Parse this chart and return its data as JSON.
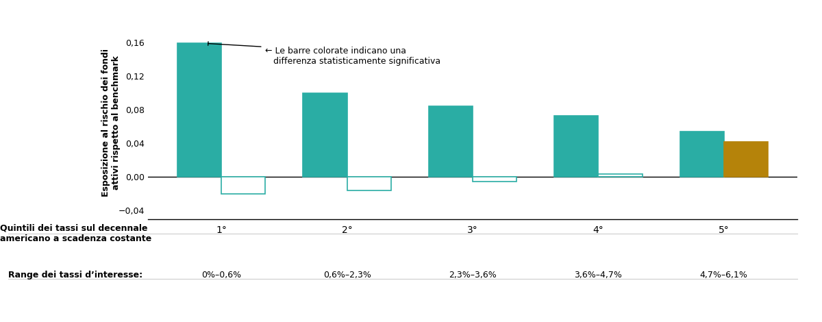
{
  "quintiles": [
    "1°",
    "2°",
    "3°",
    "4°",
    "5°"
  ],
  "credit_risk": [
    0.159,
    0.0996,
    0.0845,
    0.0728,
    0.054
  ],
  "duration_risk": [
    -0.0202,
    -0.0157,
    -0.0052,
    0.0036,
    0.0415
  ],
  "credit_color_significant": "#2AADA4",
  "credit_color_not_significant": "#FFFFFF",
  "duration_color_significant": "#B5830A",
  "duration_color_not_significant": "#FFFFFF",
  "credit_significant": [
    true,
    true,
    true,
    true,
    true
  ],
  "duration_significant": [
    false,
    false,
    false,
    false,
    true
  ],
  "ylim": [
    -0.05,
    0.18
  ],
  "yticks": [
    -0.04,
    0.0,
    0.04,
    0.08,
    0.12,
    0.16
  ],
  "ylabel": "Esposizione al rischio dei fondi\nattivi rispetto al benchmark",
  "xlabel_main": "Quintili dei tassi sul decennale\namericano a scadenza costante",
  "xlabel_range_label": "Range dei tassi d’interesse:",
  "ranges": [
    "0%–0,6%",
    "0,6%–2,3%",
    "2,3%–3,6%",
    "3,6%–4,7%",
    "4,7%–6,1%"
  ],
  "annotation_text": "← Le barre colorate indicano una\n   differenza statisticamente significativa",
  "bar_width": 0.35,
  "background_color": "#FFFFFF",
  "edge_color_outline": "#2AADA4",
  "edge_color_outline_duration": "#B5830A"
}
